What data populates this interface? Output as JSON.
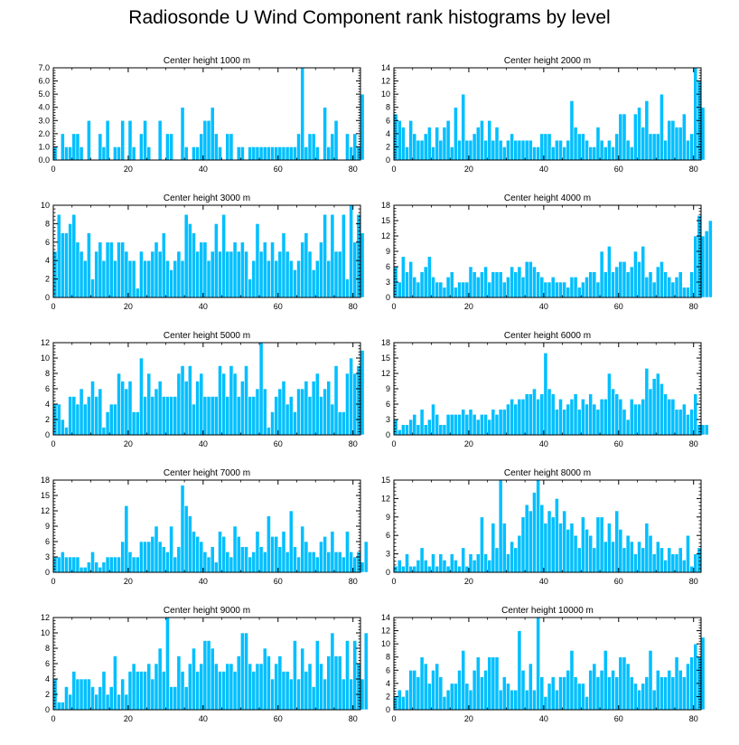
{
  "title": "Radiosonde U Wind Component rank histograms by level",
  "colors": {
    "bar": "#00bfff",
    "bar_edge": "#ffffff",
    "axis": "#000000"
  },
  "chart_data": [
    {
      "type": "bar",
      "title": "Center height 1000 m",
      "xlim": [
        0,
        82
      ],
      "ylim": [
        0,
        7
      ],
      "xticks": [
        0,
        20,
        40,
        60,
        80
      ],
      "yticks": [
        0,
        1,
        2,
        3,
        4,
        5,
        6,
        7
      ],
      "ytick_labels": [
        "0.0",
        "1.0",
        "2.0",
        "3.0",
        "4.0",
        "5.0",
        "6.0",
        "7.0"
      ],
      "values": [
        1,
        0,
        2,
        1,
        1,
        2,
        2,
        1,
        0,
        3,
        0,
        0,
        2,
        1,
        3,
        0,
        1,
        1,
        3,
        0,
        3,
        1,
        0,
        2,
        3,
        1,
        0,
        0,
        3,
        0,
        2,
        2,
        0,
        0,
        4,
        1,
        0,
        1,
        1,
        2,
        3,
        3,
        4,
        2,
        1,
        0,
        2,
        2,
        0,
        1,
        1,
        0,
        1,
        1,
        1,
        1,
        1,
        1,
        1,
        1,
        1,
        1,
        1,
        1,
        1,
        2,
        7,
        1,
        2,
        2,
        1,
        0,
        4,
        1,
        2,
        3,
        0,
        0,
        2,
        1,
        2,
        1,
        5
      ]
    },
    {
      "type": "bar",
      "title": "Center height 2000 m",
      "xlim": [
        0,
        82
      ],
      "ylim": [
        0,
        14
      ],
      "xticks": [
        0,
        20,
        40,
        60,
        80
      ],
      "yticks": [
        0,
        2,
        4,
        6,
        8,
        10,
        12,
        14
      ],
      "ytick_labels": [
        "0",
        "2",
        "4",
        "6",
        "8",
        "10",
        "12",
        "14"
      ],
      "values": [
        7,
        6,
        5,
        2,
        6,
        4,
        3,
        3,
        4,
        5,
        2,
        5,
        3,
        5,
        6,
        2,
        8,
        3,
        10,
        3,
        3,
        4,
        5,
        6,
        3,
        6,
        3,
        5,
        3,
        2,
        3,
        4,
        3,
        3,
        3,
        3,
        3,
        2,
        2,
        4,
        4,
        4,
        2,
        3,
        3,
        2,
        3,
        9,
        5,
        4,
        4,
        3,
        2,
        2,
        5,
        3,
        2,
        3,
        2,
        4,
        7,
        7,
        3,
        2,
        7,
        8,
        5,
        9,
        4,
        4,
        4,
        10,
        3,
        6,
        6,
        5,
        5,
        7,
        3,
        4,
        14,
        12,
        8
      ]
    },
    {
      "type": "bar",
      "title": "Center height 3000 m",
      "xlim": [
        0,
        82
      ],
      "ylim": [
        0,
        10
      ],
      "xticks": [
        0,
        20,
        40,
        60,
        80
      ],
      "yticks": [
        0,
        2,
        4,
        6,
        8,
        10
      ],
      "ytick_labels": [
        "0",
        "2",
        "4",
        "6",
        "8",
        "10"
      ],
      "values": [
        5,
        9,
        7,
        7,
        8,
        9,
        6,
        5,
        4,
        7,
        2,
        5,
        6,
        4,
        6,
        6,
        4,
        6,
        6,
        5,
        4,
        4,
        1,
        5,
        4,
        4,
        5,
        6,
        5,
        7,
        4,
        3,
        4,
        5,
        4,
        9,
        8,
        7,
        5,
        6,
        6,
        4,
        5,
        8,
        5,
        9,
        5,
        5,
        6,
        5,
        6,
        5,
        2,
        4,
        8,
        5,
        6,
        4,
        6,
        4,
        5,
        7,
        5,
        4,
        3,
        4,
        6,
        7,
        5,
        3,
        4,
        6,
        9,
        4,
        9,
        5,
        5,
        9,
        2,
        10,
        6,
        9,
        7
      ]
    },
    {
      "type": "bar",
      "title": "Center height 4000 m",
      "xlim": [
        0,
        82
      ],
      "ylim": [
        0,
        18
      ],
      "xticks": [
        0,
        20,
        40,
        60,
        80
      ],
      "yticks": [
        0,
        3,
        6,
        9,
        12,
        15,
        18
      ],
      "ytick_labels": [
        "0",
        "3",
        "6",
        "9",
        "12",
        "15",
        "18"
      ],
      "values": [
        6,
        3,
        8,
        5,
        7,
        4,
        3,
        5,
        6,
        8,
        4,
        3,
        3,
        2,
        4,
        5,
        2,
        3,
        3,
        3,
        6,
        5,
        4,
        5,
        6,
        3,
        5,
        5,
        5,
        3,
        4,
        6,
        5,
        6,
        4,
        7,
        7,
        6,
        5,
        4,
        3,
        3,
        4,
        3,
        3,
        3,
        2,
        4,
        4,
        2,
        3,
        4,
        5,
        5,
        3,
        9,
        5,
        10,
        5,
        6,
        7,
        7,
        5,
        6,
        9,
        7,
        10,
        4,
        5,
        3,
        6,
        7,
        5,
        4,
        3,
        4,
        5,
        2,
        2,
        5,
        12,
        16,
        12,
        13,
        15
      ]
    },
    {
      "type": "bar",
      "title": "Center height 5000 m",
      "xlim": [
        0,
        82
      ],
      "ylim": [
        0,
        12
      ],
      "xticks": [
        0,
        20,
        40,
        60,
        80
      ],
      "yticks": [
        0,
        2,
        4,
        6,
        8,
        10,
        12
      ],
      "ytick_labels": [
        "0",
        "2",
        "4",
        "6",
        "8",
        "10",
        "12"
      ],
      "values": [
        4,
        4,
        2,
        1,
        5,
        5,
        4,
        6,
        4,
        5,
        7,
        5,
        6,
        1,
        3,
        4,
        4,
        8,
        7,
        6,
        7,
        3,
        3,
        10,
        5,
        8,
        5,
        6,
        7,
        5,
        5,
        5,
        5,
        8,
        9,
        7,
        9,
        4,
        7,
        8,
        5,
        5,
        5,
        5,
        9,
        8,
        5,
        9,
        8,
        5,
        7,
        9,
        5,
        5,
        6,
        12,
        6,
        1,
        3,
        5,
        6,
        7,
        4,
        5,
        3,
        6,
        6,
        7,
        5,
        7,
        8,
        5,
        6,
        7,
        4,
        9,
        3,
        3,
        8,
        10,
        8,
        9,
        11
      ]
    },
    {
      "type": "bar",
      "title": "Center height 6000 m",
      "xlim": [
        0,
        82
      ],
      "ylim": [
        0,
        18
      ],
      "xticks": [
        0,
        20,
        40,
        60,
        80
      ],
      "yticks": [
        0,
        3,
        6,
        9,
        12,
        15,
        18
      ],
      "ytick_labels": [
        "0",
        "3",
        "6",
        "9",
        "12",
        "15",
        "18"
      ],
      "values": [
        3,
        1,
        2,
        2,
        3,
        4,
        2,
        5,
        2,
        3,
        6,
        4,
        2,
        2,
        4,
        4,
        4,
        4,
        5,
        4,
        5,
        4,
        3,
        4,
        4,
        3,
        5,
        4,
        5,
        5,
        6,
        7,
        6,
        7,
        7,
        8,
        8,
        9,
        7,
        8,
        16,
        9,
        8,
        5,
        7,
        5,
        6,
        7,
        8,
        5,
        7,
        6,
        8,
        6,
        5,
        7,
        7,
        12,
        9,
        8,
        7,
        5,
        3,
        7,
        6,
        6,
        7,
        13,
        9,
        11,
        12,
        10,
        8,
        7,
        7,
        5,
        5,
        6,
        4,
        5,
        8,
        2,
        2,
        2
      ]
    },
    {
      "type": "bar",
      "title": "Center height 7000 m",
      "xlim": [
        0,
        82
      ],
      "ylim": [
        0,
        18
      ],
      "xticks": [
        0,
        20,
        40,
        60,
        80
      ],
      "yticks": [
        0,
        3,
        6,
        9,
        12,
        15,
        18
      ],
      "ytick_labels": [
        "0",
        "3",
        "6",
        "9",
        "12",
        "15",
        "18"
      ],
      "values": [
        3,
        3,
        4,
        3,
        3,
        3,
        3,
        1,
        1,
        2,
        4,
        2,
        1,
        2,
        3,
        3,
        3,
        3,
        6,
        13,
        4,
        3,
        3,
        6,
        6,
        6,
        7,
        9,
        6,
        5,
        4,
        9,
        3,
        5,
        17,
        13,
        11,
        8,
        7,
        6,
        4,
        3,
        5,
        2,
        8,
        7,
        4,
        3,
        9,
        7,
        5,
        5,
        3,
        4,
        8,
        5,
        4,
        11,
        7,
        7,
        5,
        8,
        4,
        12,
        5,
        3,
        9,
        6,
        4,
        4,
        3,
        6,
        7,
        4,
        8,
        4,
        4,
        3,
        8,
        4,
        3,
        4,
        2,
        6
      ]
    },
    {
      "type": "bar",
      "title": "Center height 8000 m",
      "xlim": [
        0,
        82
      ],
      "ylim": [
        0,
        15
      ],
      "xticks": [
        0,
        20,
        40,
        60,
        80
      ],
      "yticks": [
        0,
        3,
        6,
        9,
        12,
        15
      ],
      "ytick_labels": [
        "0",
        "3",
        "6",
        "9",
        "12",
        "15"
      ],
      "values": [
        1,
        2,
        1,
        3,
        1,
        1,
        2,
        4,
        2,
        1,
        3,
        1,
        3,
        2,
        1,
        3,
        2,
        1,
        4,
        1,
        3,
        2,
        3,
        9,
        3,
        2,
        8,
        4,
        15,
        8,
        3,
        5,
        4,
        6,
        9,
        11,
        10,
        13,
        15,
        11,
        8,
        10,
        9,
        12,
        8,
        10,
        7,
        8,
        6,
        4,
        9,
        7,
        6,
        4,
        9,
        9,
        5,
        8,
        5,
        10,
        7,
        4,
        6,
        5,
        3,
        5,
        4,
        8,
        6,
        3,
        5,
        4,
        2,
        4,
        3,
        3,
        4,
        2,
        6,
        1,
        3,
        4
      ]
    },
    {
      "type": "bar",
      "title": "Center height 9000 m",
      "xlim": [
        0,
        82
      ],
      "ylim": [
        0,
        12
      ],
      "xticks": [
        0,
        20,
        40,
        60,
        80
      ],
      "yticks": [
        0,
        2,
        4,
        6,
        8,
        10,
        12
      ],
      "ytick_labels": [
        "0",
        "2",
        "4",
        "6",
        "8",
        "10",
        "12"
      ],
      "values": [
        4,
        1,
        1,
        3,
        2,
        5,
        4,
        4,
        4,
        4,
        3,
        2,
        3,
        5,
        2,
        3,
        7,
        2,
        4,
        2,
        5,
        6,
        5,
        5,
        5,
        6,
        4,
        6,
        8,
        5,
        12,
        3,
        3,
        7,
        5,
        3,
        6,
        8,
        5,
        6,
        9,
        9,
        8,
        6,
        5,
        5,
        6,
        6,
        5,
        7,
        10,
        10,
        6,
        5,
        6,
        6,
        8,
        7,
        4,
        6,
        7,
        5,
        5,
        4,
        9,
        4,
        8,
        5,
        6,
        3,
        9,
        6,
        4,
        7,
        10,
        7,
        7,
        4,
        9,
        4,
        9,
        6,
        4,
        10
      ]
    },
    {
      "type": "bar",
      "title": "Center height 10000 m",
      "xlim": [
        0,
        82
      ],
      "ylim": [
        0,
        14
      ],
      "xticks": [
        0,
        20,
        40,
        60,
        80
      ],
      "yticks": [
        0,
        2,
        4,
        6,
        8,
        10,
        12,
        14
      ],
      "ytick_labels": [
        "0",
        "2",
        "4",
        "6",
        "8",
        "10",
        "12",
        "14"
      ],
      "values": [
        2,
        3,
        2,
        3,
        6,
        6,
        5,
        8,
        7,
        4,
        6,
        7,
        5,
        2,
        3,
        4,
        4,
        6,
        9,
        4,
        3,
        6,
        8,
        5,
        6,
        8,
        8,
        8,
        3,
        5,
        4,
        3,
        3,
        12,
        6,
        3,
        7,
        3,
        14,
        5,
        2,
        4,
        5,
        3,
        5,
        5,
        6,
        9,
        5,
        4,
        4,
        2,
        6,
        7,
        5,
        6,
        9,
        5,
        6,
        5,
        8,
        8,
        7,
        5,
        4,
        3,
        4,
        5,
        9,
        3,
        6,
        5,
        5,
        6,
        5,
        8,
        6,
        5,
        7,
        8,
        10,
        8,
        11
      ]
    }
  ]
}
